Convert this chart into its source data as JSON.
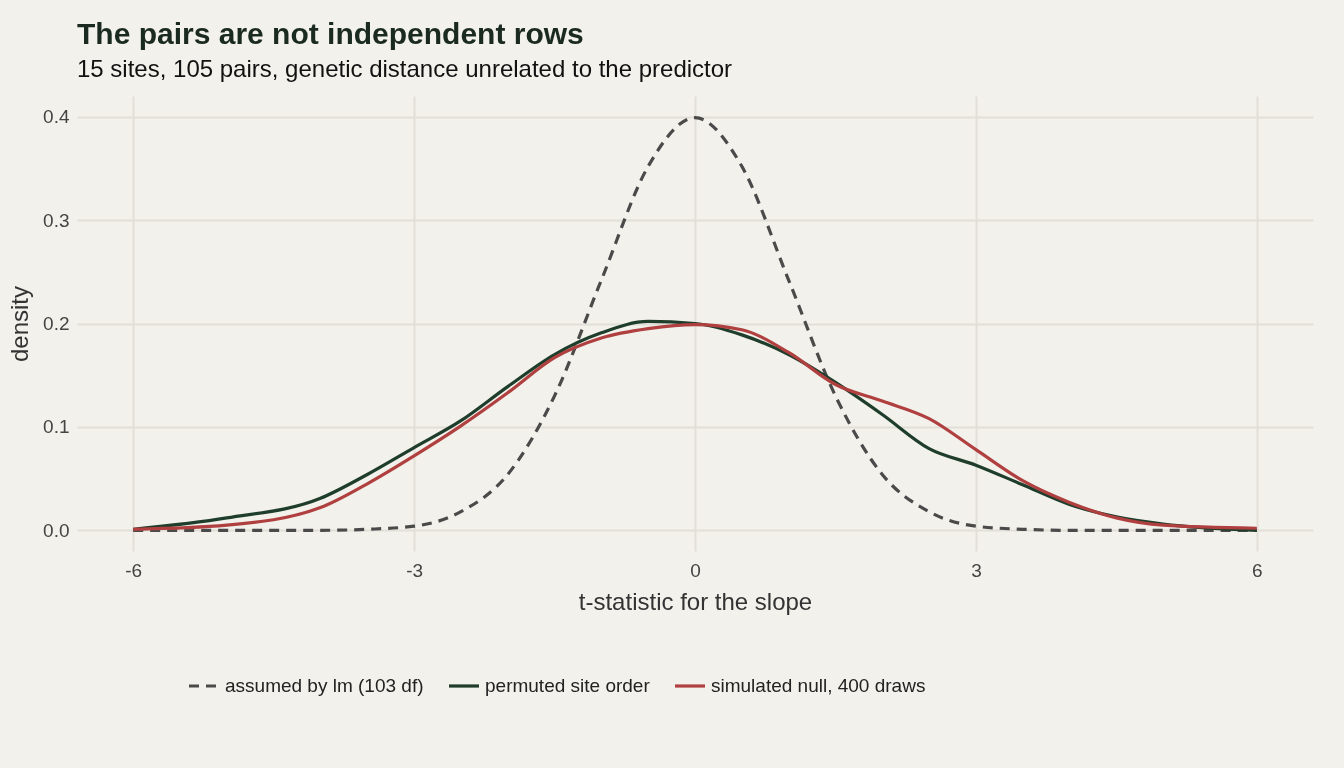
{
  "chart_data": {
    "type": "line",
    "title": "The pairs are not independent rows",
    "subtitle": "15 sites, 105 pairs, genetic distance unrelated to the predictor",
    "xlabel": "t-statistic for the slope",
    "ylabel": "density",
    "x": [
      -6,
      -5,
      -4,
      -3.5,
      -3,
      -2.5,
      -2,
      -1.5,
      -1,
      -0.5,
      0,
      0.5,
      1,
      1.5,
      2,
      2.5,
      3,
      3.5,
      4,
      4.5,
      5,
      6
    ],
    "series": [
      {
        "name": "assumed by lm (103 df)",
        "color": "#4a4a4a",
        "line_style": "dashed",
        "values": [
          0,
          0,
          0,
          0.001,
          0.004,
          0.018,
          0.054,
          0.13,
          0.242,
          0.352,
          0.399,
          0.352,
          0.242,
          0.13,
          0.054,
          0.018,
          0.004,
          0.001,
          0,
          0,
          0,
          0
        ]
      },
      {
        "name": "permuted site order",
        "color": "#1f3d2b",
        "line_style": "solid",
        "values": [
          0.001,
          0.012,
          0.031,
          0.054,
          0.08,
          0.106,
          0.139,
          0.17,
          0.191,
          0.202,
          0.2,
          0.189,
          0.17,
          0.143,
          0.112,
          0.079,
          0.063,
          0.044,
          0.025,
          0.013,
          0.006,
          0.0
        ]
      },
      {
        "name": "simulated null, 400 draws",
        "color": "#b04040",
        "line_style": "solid",
        "values": [
          0.001,
          0.005,
          0.022,
          0.045,
          0.072,
          0.101,
          0.133,
          0.167,
          0.186,
          0.195,
          0.199,
          0.194,
          0.172,
          0.141,
          0.125,
          0.108,
          0.078,
          0.048,
          0.027,
          0.012,
          0.005,
          0.002
        ]
      }
    ],
    "xlim": [
      -6.6,
      6.6
    ],
    "xticks": [
      -6,
      -3,
      0,
      3,
      6
    ],
    "ylim": [
      -0.02,
      0.42
    ],
    "yticks": [
      {
        "value": 0,
        "label": "0.0"
      },
      0.1,
      0.2,
      0.3,
      0.4
    ],
    "grid": true,
    "legend": "bottom",
    "marker": "none"
  }
}
